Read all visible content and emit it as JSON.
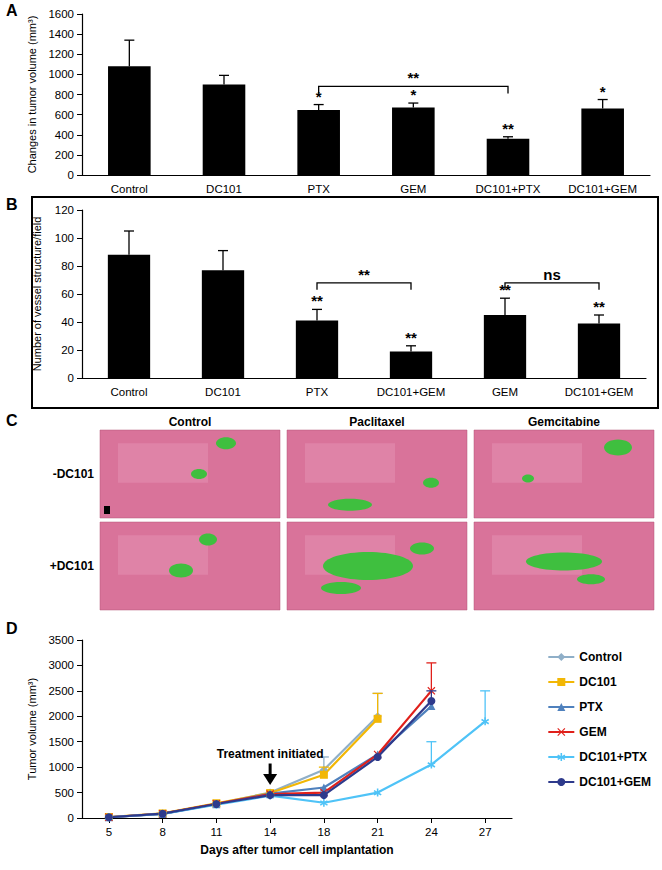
{
  "chart_data": [
    {
      "panel": "A",
      "type": "bar",
      "categories": [
        "Control",
        "DC101",
        "PTX",
        "GEM",
        "DC101+PTX",
        "DC101+GEM"
      ],
      "values": [
        1080,
        900,
        645,
        670,
        360,
        660
      ],
      "errors": [
        260,
        90,
        55,
        45,
        20,
        90
      ],
      "significance": [
        null,
        null,
        "*",
        "*",
        "**",
        "*"
      ],
      "brackets": [
        {
          "from": 2,
          "to": 4,
          "y": 880,
          "label": "**"
        }
      ],
      "color": "#000000",
      "y_label": "Changes in tumor volume (mm³)",
      "ylim": [
        0,
        1600
      ],
      "yticks": [
        0,
        200,
        400,
        600,
        800,
        1000,
        1200,
        1400,
        1600
      ],
      "grid": false
    },
    {
      "panel": "B",
      "type": "bar",
      "categories": [
        "Control",
        "DC101",
        "PTX",
        "DC101+GEM",
        "GEM",
        "DC101+GEM"
      ],
      "values": [
        88,
        77,
        41,
        19,
        45,
        39
      ],
      "errors": [
        17,
        14,
        8,
        4,
        12,
        6
      ],
      "significance": [
        null,
        null,
        "**",
        "**",
        "**",
        "**"
      ],
      "brackets": [
        {
          "from": 2,
          "to": 3,
          "y": 68,
          "label": "**"
        },
        {
          "from": 4,
          "to": 5,
          "y": 68,
          "label": "ns"
        }
      ],
      "color": "#000000",
      "y_label": "Number of vessel structure/field",
      "ylim": [
        0,
        120
      ],
      "yticks": [
        0,
        20,
        40,
        60,
        80,
        100,
        120
      ],
      "grid": false
    },
    {
      "panel": "D",
      "type": "line",
      "categories": [
        "5",
        "8",
        "11",
        "14",
        "18",
        "21",
        "24",
        "27"
      ],
      "series": [
        {
          "name": "Control",
          "color": "#8FAFC8",
          "marker": "diamond",
          "values": [
            15,
            80,
            280,
            500,
            950,
            2000,
            null,
            null
          ],
          "errors": [
            null,
            null,
            null,
            null,
            250,
            450,
            null,
            null
          ]
        },
        {
          "name": "DC101",
          "color": "#F2B705",
          "marker": "square",
          "values": [
            20,
            90,
            290,
            490,
            850,
            1950,
            null,
            null
          ],
          "errors": [
            null,
            null,
            null,
            null,
            150,
            500,
            null,
            null
          ]
        },
        {
          "name": "PTX",
          "color": "#4F81BD",
          "marker": "triangle",
          "values": [
            15,
            80,
            270,
            480,
            600,
            1250,
            2200,
            null
          ],
          "errors": [
            null,
            null,
            null,
            null,
            null,
            null,
            null,
            null
          ]
        },
        {
          "name": "GEM",
          "color": "#E0201B",
          "marker": "x",
          "values": [
            15,
            85,
            280,
            470,
            500,
            1250,
            2500,
            null
          ],
          "errors": [
            null,
            null,
            null,
            null,
            null,
            null,
            550,
            null
          ]
        },
        {
          "name": "DC101+PTX",
          "color": "#4FC3F7",
          "marker": "asterisk",
          "values": [
            15,
            80,
            260,
            440,
            300,
            500,
            1050,
            1900
          ],
          "errors": [
            null,
            null,
            null,
            null,
            null,
            null,
            450,
            600
          ]
        },
        {
          "name": "DC101+GEM",
          "color": "#2E3A8C",
          "marker": "circle",
          "values": [
            15,
            85,
            275,
            450,
            450,
            1200,
            2300,
            null
          ],
          "errors": [
            null,
            null,
            null,
            null,
            null,
            null,
            200,
            null
          ]
        }
      ],
      "annotations": [
        {
          "text": "Treatment initiated",
          "x": "14",
          "y": 1150,
          "arrow_to": 650
        }
      ],
      "x_label": "Days after tumor cell implantation",
      "y_label": "Tumor volume (mm³)",
      "ylim": [
        0,
        3500
      ],
      "yticks": [
        0,
        500,
        1000,
        1500,
        2000,
        2500,
        3000,
        3500
      ],
      "legend": "right",
      "grid": false
    }
  ],
  "image_panel": {
    "panel": "C",
    "columns": [
      "Control",
      "Paclitaxel",
      "Gemcitabine"
    ],
    "rows": [
      "-DC101",
      "+DC101"
    ]
  }
}
